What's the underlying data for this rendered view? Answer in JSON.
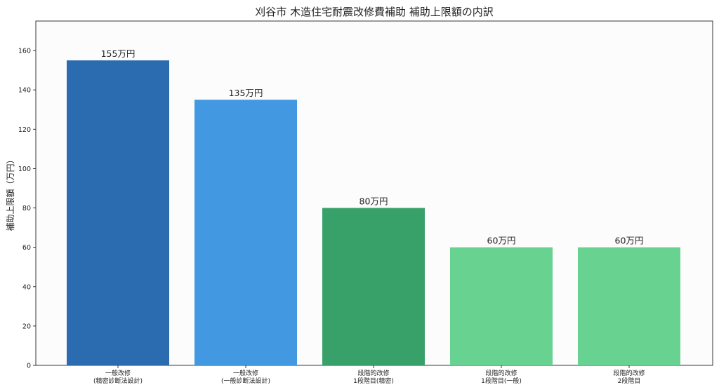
{
  "chart_data": {
    "type": "bar",
    "title": "刈谷市 木造住宅耐震改修費補助 補助上限額の内訳",
    "ylabel": "補助上限額（万円）",
    "xlabel": "",
    "ylim": [
      0,
      175
    ],
    "yticks": [
      0,
      20,
      40,
      60,
      80,
      100,
      120,
      140,
      160
    ],
    "grid": false,
    "categories": [
      [
        "一般改修",
        "(精密診断法設計)"
      ],
      [
        "一般改修",
        "(一般診断法設計)"
      ],
      [
        "段階的改修",
        "1段階目(精密)"
      ],
      [
        "段階的改修",
        "1段階目(一般)"
      ],
      [
        "段階的改修",
        "2段階目"
      ]
    ],
    "values": [
      155,
      135,
      80,
      60,
      60
    ],
    "data_labels": [
      "155万円",
      "135万円",
      "80万円",
      "60万円",
      "60万円"
    ],
    "colors": [
      "#2b6cb0",
      "#4299e1",
      "#38a169",
      "#68d391",
      "#68d391"
    ]
  }
}
